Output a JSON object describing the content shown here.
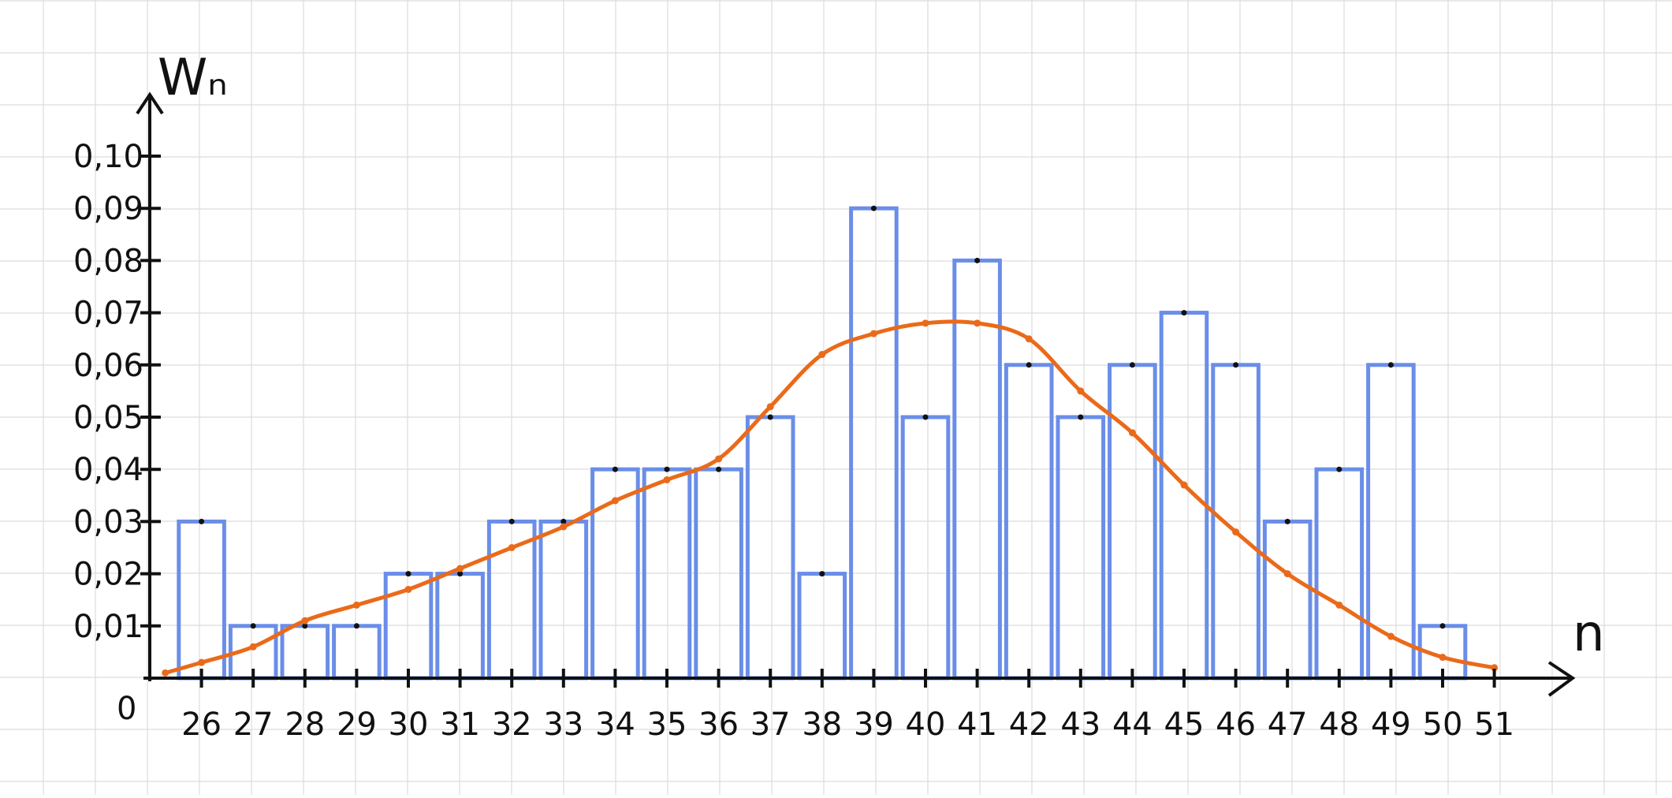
{
  "chart_data": {
    "type": "bar",
    "title": "",
    "xlabel": "n",
    "ylabel": "Wₙ",
    "origin_label": "0",
    "grid": true,
    "categories": [
      "26",
      "27",
      "28",
      "29",
      "30",
      "31",
      "32",
      "33",
      "34",
      "35",
      "36",
      "37",
      "38",
      "39",
      "40",
      "41",
      "42",
      "43",
      "44",
      "45",
      "46",
      "47",
      "48",
      "49",
      "50",
      "51"
    ],
    "series": [
      {
        "type": "bar",
        "values": [
          0.03,
          0.01,
          0.01,
          0.01,
          0.02,
          0.02,
          0.03,
          0.03,
          0.04,
          0.04,
          0.04,
          0.05,
          0.02,
          0.09,
          0.05,
          0.08,
          0.06,
          0.05,
          0.06,
          0.07,
          0.06,
          0.03,
          0.04,
          0.06,
          0.01,
          0.0
        ]
      },
      {
        "type": "line",
        "x": [
          25.3,
          26,
          27,
          28,
          29,
          30,
          31,
          32,
          33,
          34,
          35,
          36,
          37,
          38,
          39,
          40,
          41,
          42,
          43,
          44,
          45,
          46,
          47,
          48,
          49,
          50,
          51
        ],
        "values": [
          0.001,
          0.003,
          0.006,
          0.011,
          0.014,
          0.017,
          0.021,
          0.025,
          0.029,
          0.034,
          0.038,
          0.042,
          0.052,
          0.062,
          0.066,
          0.068,
          0.068,
          0.065,
          0.055,
          0.047,
          0.037,
          0.028,
          0.02,
          0.014,
          0.008,
          0.004,
          0.002
        ]
      }
    ],
    "yticks": [
      "0,01",
      "0,02",
      "0,03",
      "0,04",
      "0,05",
      "0,06",
      "0,07",
      "0,08",
      "0,09",
      "0,10"
    ],
    "ylim": [
      0,
      0.105
    ],
    "xlim": [
      25,
      52
    ],
    "colors": {
      "bars": "#6a8ee8",
      "curve": "#ea6a1a",
      "axis": "#111111",
      "grid": "#dcdcdc"
    }
  }
}
